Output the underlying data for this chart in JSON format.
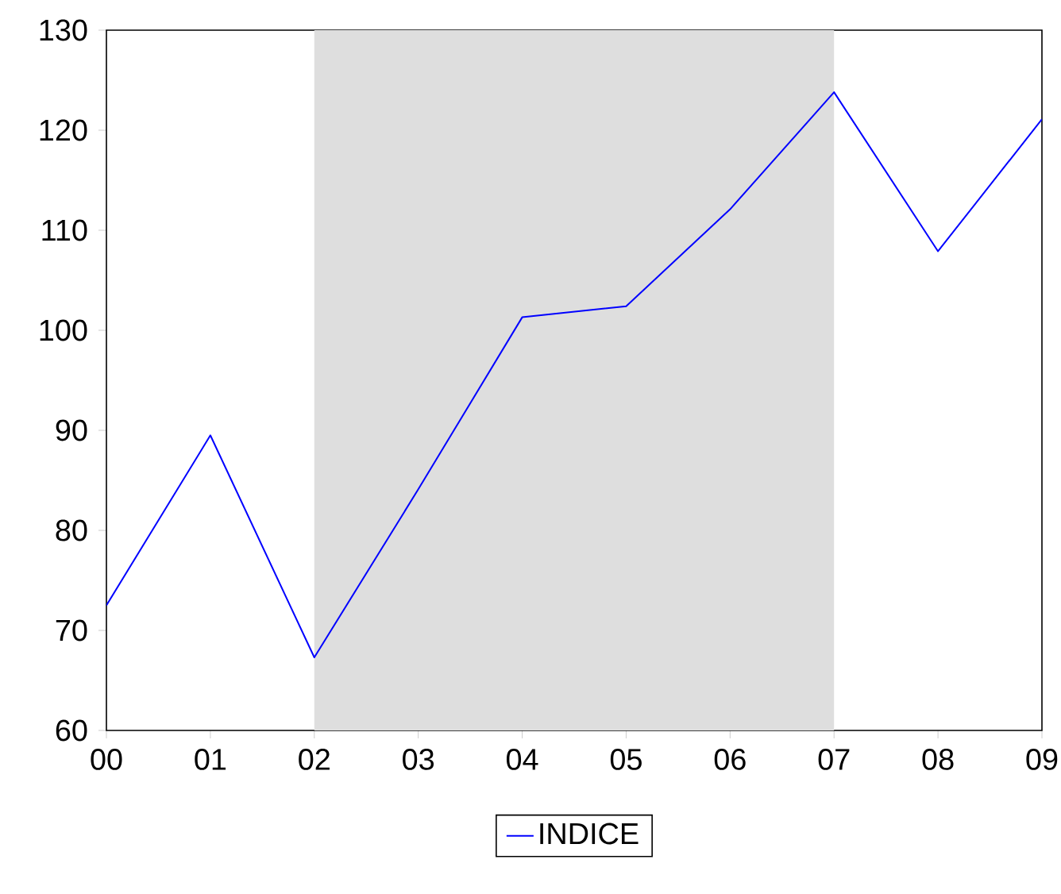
{
  "chart_data": {
    "type": "line",
    "x": [
      0,
      1,
      2,
      3,
      4,
      5,
      6,
      7,
      8,
      9
    ],
    "series": [
      {
        "name": "INDICE",
        "color": "#0000ff",
        "values": [
          72.5,
          89.5,
          67.3,
          84.1,
          101.3,
          102.4,
          112.1,
          123.8,
          107.9,
          121.1
        ]
      }
    ],
    "xlim": [
      0,
      9
    ],
    "xticks": [
      {
        "value": 0,
        "label": "00"
      },
      {
        "value": 1,
        "label": "01"
      },
      {
        "value": 2,
        "label": "02"
      },
      {
        "value": 3,
        "label": "03"
      },
      {
        "value": 4,
        "label": "04"
      },
      {
        "value": 5,
        "label": "05"
      },
      {
        "value": 6,
        "label": "06"
      },
      {
        "value": 7,
        "label": "07"
      },
      {
        "value": 8,
        "label": "08"
      },
      {
        "value": 9,
        "label": "09"
      }
    ],
    "ylim": [
      60,
      130
    ],
    "yticks": [
      60,
      70,
      80,
      90,
      100,
      110,
      120,
      130
    ],
    "bands": [
      {
        "axis": "x",
        "from": 2,
        "to": 7,
        "color": "#dedede"
      }
    ],
    "legend": "bottom",
    "grid": false,
    "marker": "none",
    "line_style": "solid"
  }
}
